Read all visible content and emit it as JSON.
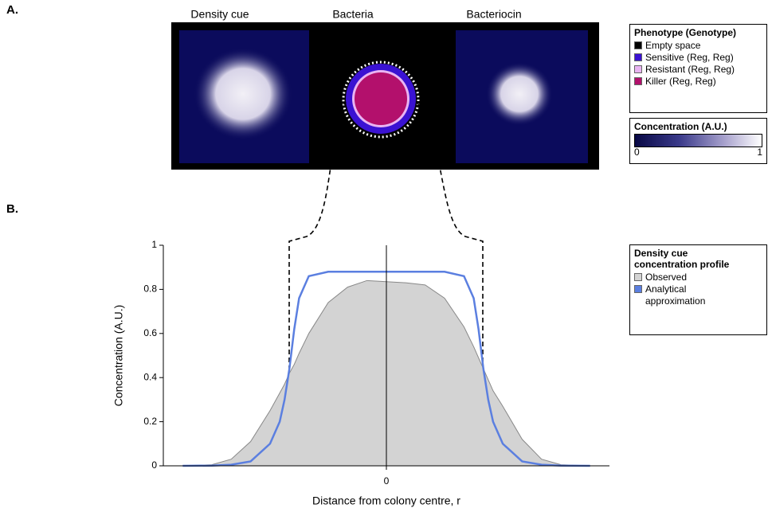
{
  "panel_labels": [
    "A.",
    "B."
  ],
  "panel_a": {
    "image_titles": [
      "Density cue",
      "Bacteria",
      "Bacteriocin"
    ],
    "phenotype_legend": {
      "title": "Phenotype (Genotype)",
      "items": [
        {
          "label": "Empty space",
          "color": "#000000"
        },
        {
          "label": "Sensitive (Reg, Reg)",
          "color": "#3a12d2"
        },
        {
          "label": "Resistant (Reg, Reg)",
          "color": "#e9b4f2"
        },
        {
          "label": "Killer (Reg, Reg)",
          "color": "#b3106c"
        }
      ]
    },
    "colorbar": {
      "title": "Concentration (A.U.)",
      "ticks": [
        0,
        1
      ]
    }
  },
  "chart_data": {
    "type": "line",
    "xlabel": "Distance from colony centre, r",
    "ylabel": "Concentration (A.U.)",
    "legend_title": "Density cue concentration profile",
    "legend_position": "right",
    "x": [
      -2.1,
      -1.8,
      -1.6,
      -1.4,
      -1.2,
      -1.1,
      -1.05,
      -1,
      -0.95,
      -0.9,
      -0.8,
      -0.6,
      -0.4,
      -0.2,
      0,
      0.2,
      0.4,
      0.6,
      0.8,
      0.9,
      0.95,
      1,
      1.05,
      1.1,
      1.2,
      1.4,
      1.6,
      1.8,
      2.1
    ],
    "series": [
      {
        "name": "Observed",
        "color": "#d3d3d3",
        "values": [
          0,
          0.005,
          0.03,
          0.11,
          0.25,
          0.33,
          0.37,
          0.42,
          0.46,
          0.51,
          0.6,
          0.74,
          0.81,
          0.84,
          0.835,
          0.83,
          0.82,
          0.76,
          0.63,
          0.54,
          0.49,
          0.44,
          0.39,
          0.34,
          0.27,
          0.12,
          0.03,
          0.005,
          0
        ]
      },
      {
        "name": "Analytical approximation",
        "color": "#5b7fe0",
        "values": [
          0,
          0.001,
          0.005,
          0.02,
          0.1,
          0.2,
          0.3,
          0.44,
          0.62,
          0.76,
          0.86,
          0.88,
          0.88,
          0.88,
          0.88,
          0.88,
          0.88,
          0.88,
          0.86,
          0.76,
          0.62,
          0.44,
          0.3,
          0.2,
          0.1,
          0.02,
          0.005,
          0.001,
          0
        ]
      }
    ],
    "xlim": [
      -2.3,
      2.3
    ],
    "xticks": [
      0
    ],
    "ylim": [
      0,
      1
    ],
    "yticks": [
      0,
      0.2,
      0.4,
      0.6,
      0.8,
      1
    ]
  }
}
